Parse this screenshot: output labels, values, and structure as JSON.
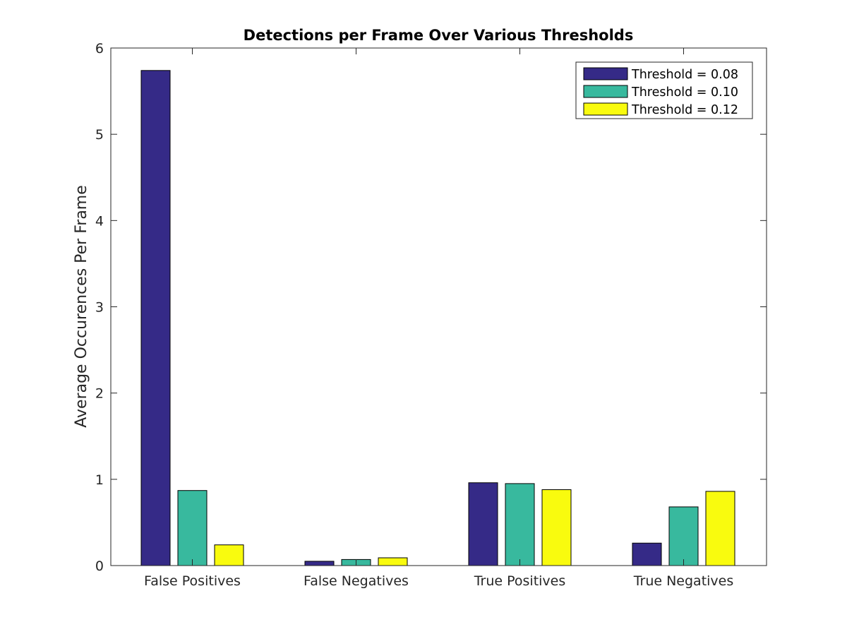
{
  "chart_data": {
    "type": "bar",
    "title": "Detections per Frame Over Various Thresholds",
    "xlabel": "",
    "ylabel": "Average Occurences Per Frame",
    "ylim": [
      0,
      6
    ],
    "yticks": [
      "0",
      "1",
      "2",
      "3",
      "4",
      "5",
      "6"
    ],
    "grid": false,
    "legend_position": "top-right",
    "categories": [
      "False Positives",
      "False Negatives",
      "True Positives",
      "True Negatives"
    ],
    "series": [
      {
        "name": "Threshold = 0.08",
        "color": "#352a87",
        "values": [
          5.74,
          0.05,
          0.96,
          0.26
        ]
      },
      {
        "name": "Threshold = 0.10",
        "color": "#38b99e",
        "values": [
          0.87,
          0.07,
          0.95,
          0.68
        ]
      },
      {
        "name": "Threshold = 0.12",
        "color": "#f9fb0e",
        "values": [
          0.24,
          0.09,
          0.88,
          0.86
        ]
      }
    ]
  }
}
